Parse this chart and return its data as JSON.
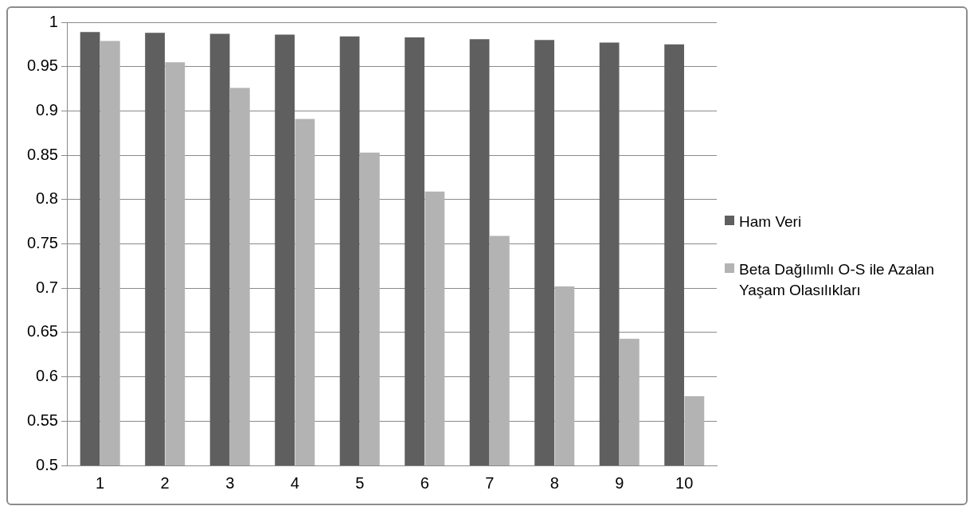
{
  "chart_data": {
    "type": "bar",
    "categories": [
      "1",
      "2",
      "3",
      "4",
      "5",
      "6",
      "7",
      "8",
      "9",
      "10"
    ],
    "series": [
      {
        "name": "Ham Veri",
        "color": "#5f5f5f",
        "values": [
          0.989,
          0.988,
          0.987,
          0.986,
          0.984,
          0.983,
          0.981,
          0.98,
          0.977,
          0.975
        ]
      },
      {
        "name": "Beta Dağılımlı O-S ile Azalan Yaşam Olasılıkları",
        "color": "#b3b3b3",
        "values": [
          0.979,
          0.955,
          0.926,
          0.891,
          0.853,
          0.809,
          0.759,
          0.702,
          0.643,
          0.578
        ]
      }
    ],
    "ylim": [
      0.5,
      1
    ],
    "yticks": [
      0.5,
      0.55,
      0.6,
      0.65,
      0.7,
      0.75,
      0.8,
      0.85,
      0.9,
      0.95,
      1
    ],
    "grid": "y",
    "legend": "right"
  }
}
